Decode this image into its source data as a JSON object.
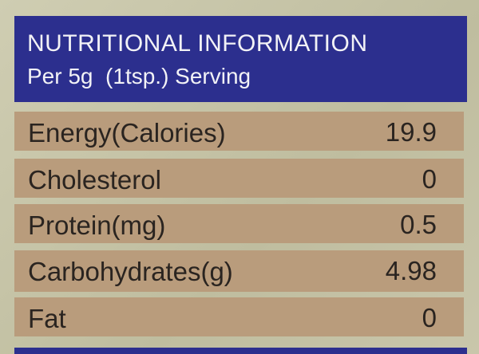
{
  "header": {
    "title": "NUTRITIONAL INFORMATION",
    "subtitle": "Per 5g  (1tsp.) Serving"
  },
  "table": {
    "rows": [
      [
        "Energy(Calories)",
        19.9
      ],
      [
        "Cholesterol",
        0
      ],
      [
        "Protein(mg)",
        0.5
      ],
      [
        "Carbohydrates(g)",
        4.98
      ],
      [
        "Fat",
        0
      ]
    ]
  }
}
